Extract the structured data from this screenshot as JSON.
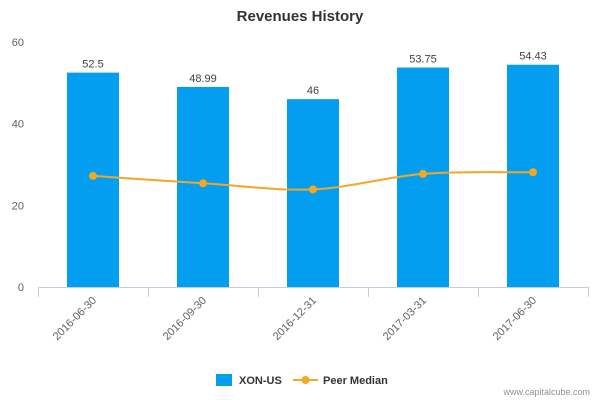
{
  "chart_data": {
    "type": "bar",
    "title": "Revenues History",
    "xlabel": "",
    "ylabel": "",
    "categories": [
      "2016-06-30",
      "2016-09-30",
      "2016-12-31",
      "2017-03-31",
      "2017-06-30"
    ],
    "ylim": [
      0,
      60
    ],
    "yticks": [
      0,
      20,
      40,
      60
    ],
    "grid": false,
    "legend_position": "bottom",
    "series": [
      {
        "name": "XON-US",
        "type": "bar",
        "color": "#039ef0",
        "values": [
          52.5,
          48.99,
          46,
          53.75,
          54.43
        ],
        "data_labels": [
          "52.5",
          "48.99",
          "46",
          "53.75",
          "54.43"
        ]
      },
      {
        "name": "Peer Median",
        "type": "line",
        "color": "#f5a623",
        "values": [
          27.2,
          25.4,
          23.9,
          27.7,
          28.1
        ]
      }
    ],
    "credit": "www.capitalcube.com"
  }
}
